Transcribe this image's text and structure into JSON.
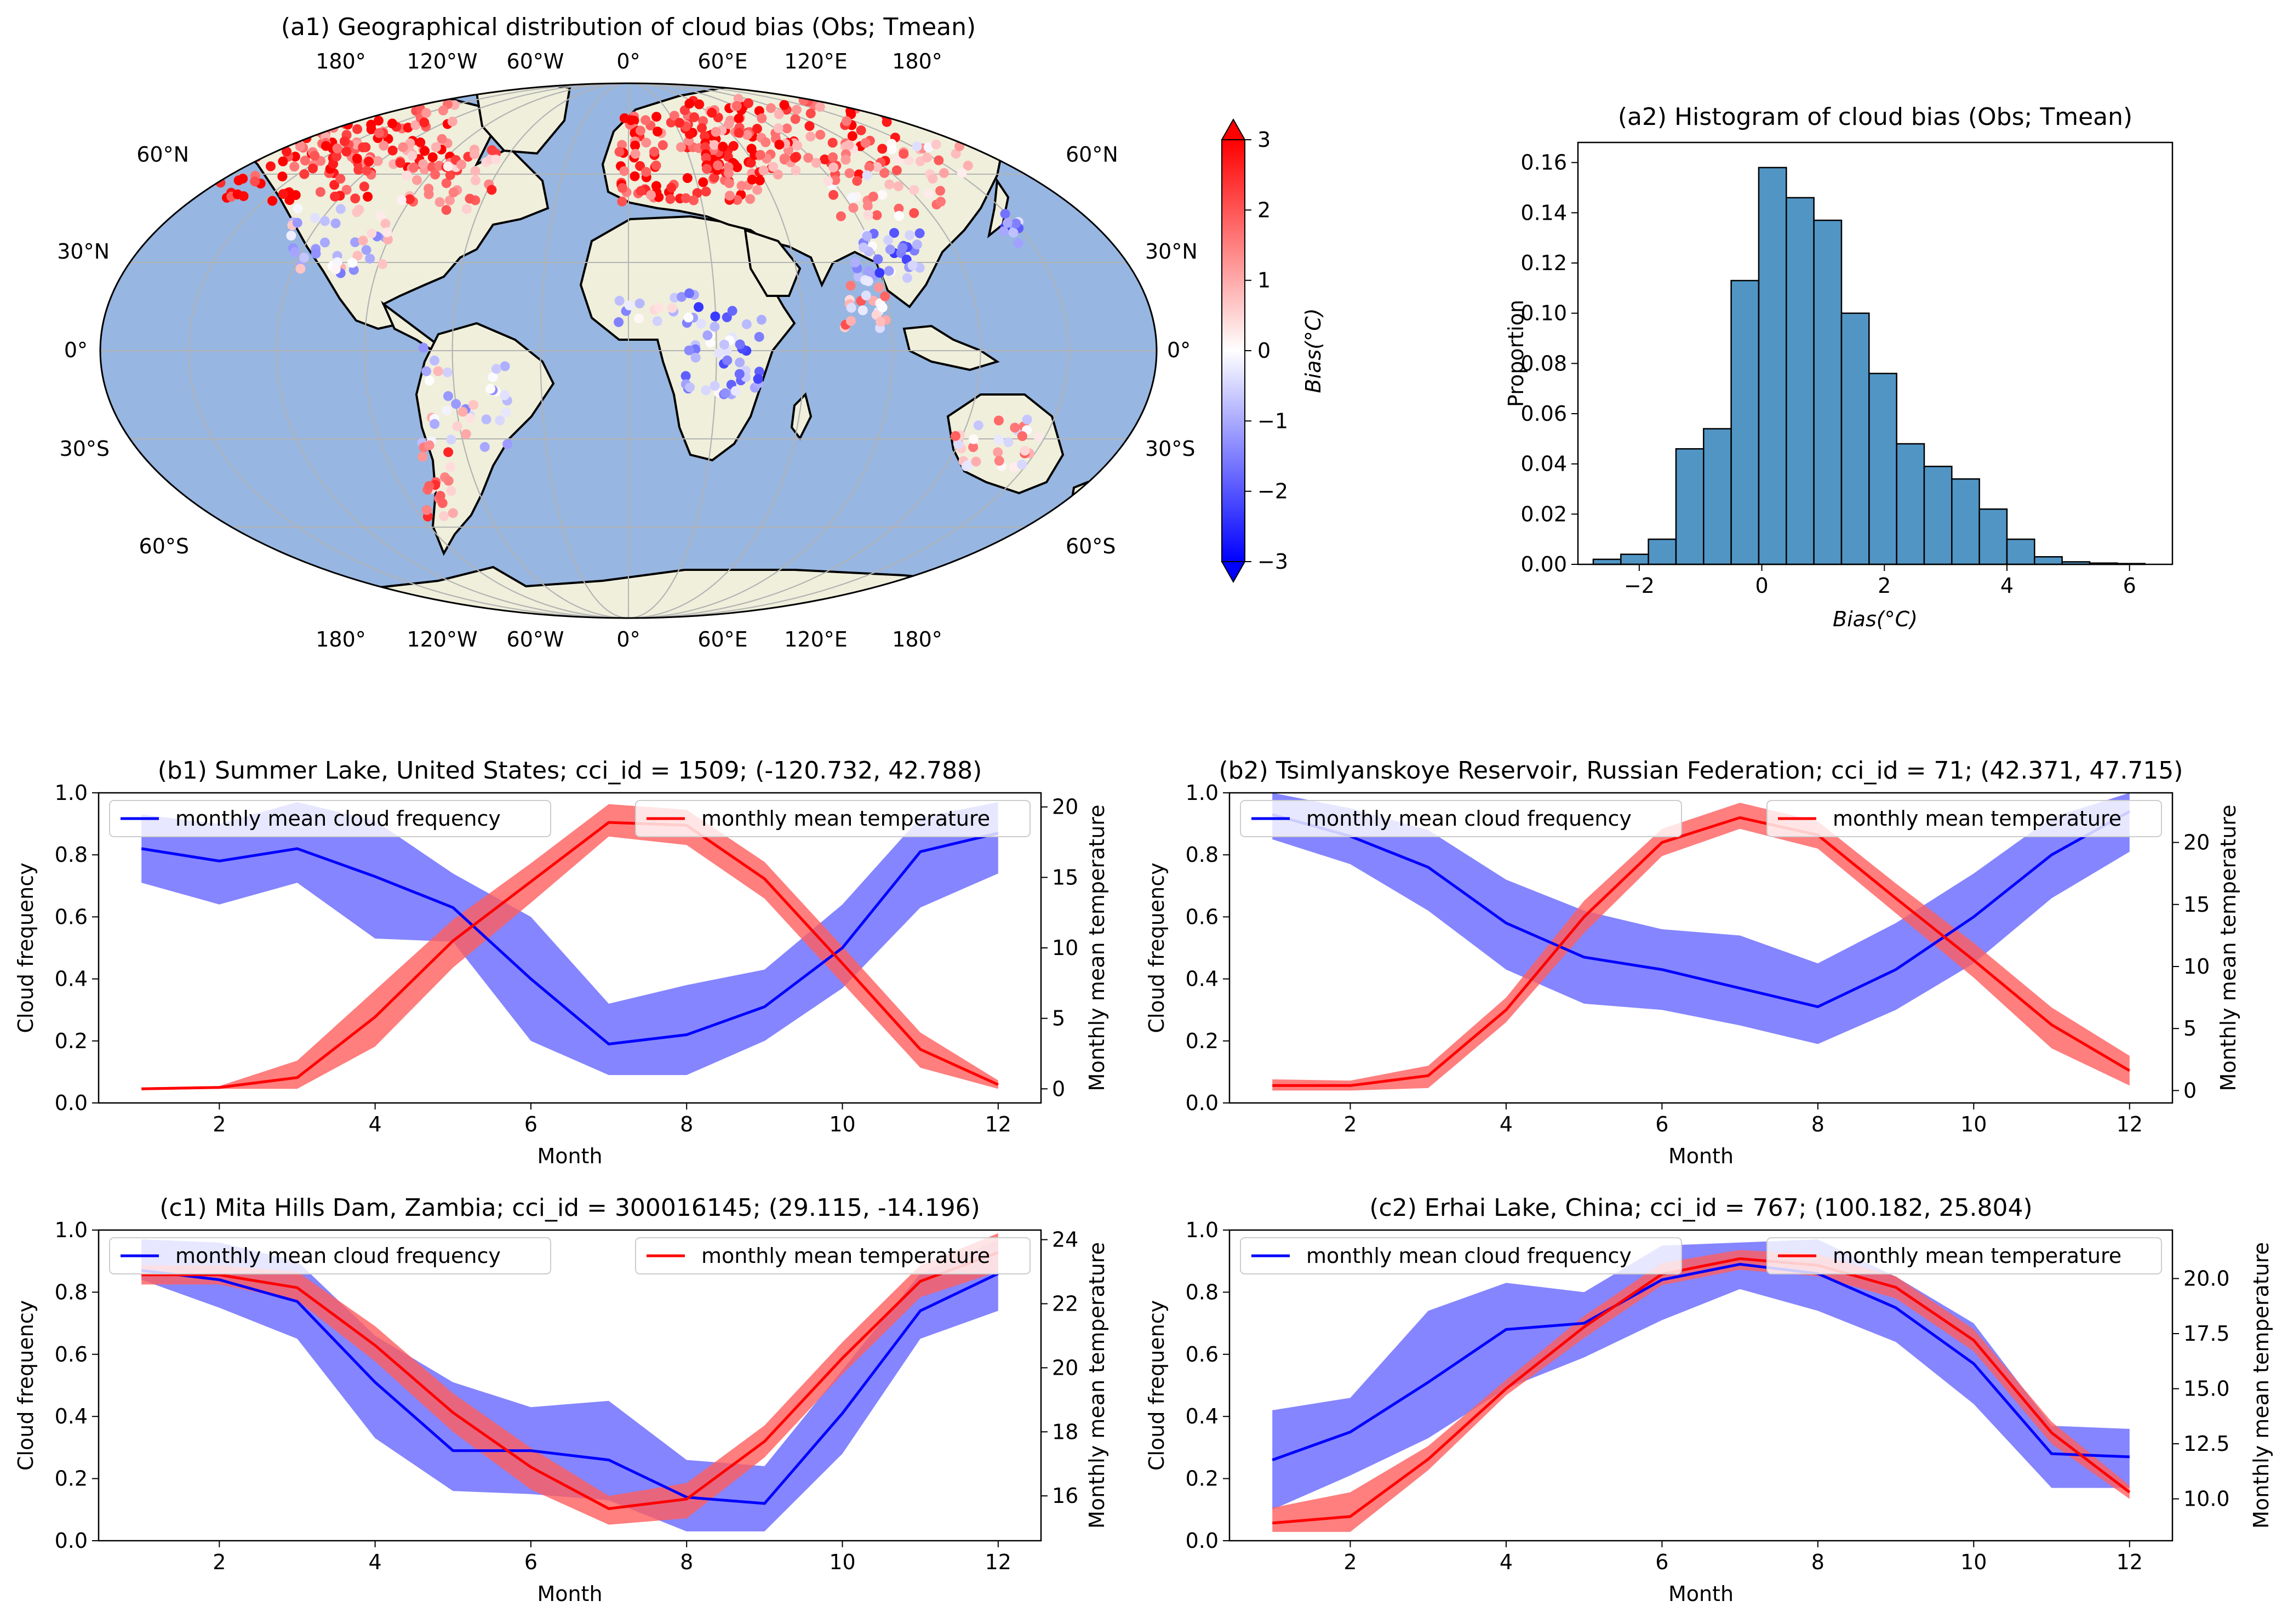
{
  "colors": {
    "ocean": "#97b6e1",
    "land": "#efefdc",
    "coast": "#000000",
    "grid": "#b3b3b3",
    "hist_bar": "#5195c4",
    "cloud_line": "#0000ff",
    "cloud_band": "#6666ff",
    "temp_line": "#ff0000",
    "temp_band": "#ff5e5e"
  },
  "map": {
    "title": "(a1) Geographical distribution of cloud bias (Obs; Tmean)",
    "lon_labels": [
      "180°",
      "120°W",
      "60°W",
      "0°",
      "60°E",
      "120°E",
      "180°"
    ],
    "lat_labels": [
      "60°N",
      "30°N",
      "0°",
      "30°S",
      "60°S"
    ],
    "colorbar": {
      "label": "Bias(°C)",
      "ticks": [
        "3",
        "2",
        "1",
        "0",
        "−1",
        "−2",
        "−3"
      ],
      "range": [
        -3,
        3
      ],
      "colormap": "bwr"
    }
  },
  "chart_data": [
    {
      "id": "a2",
      "type": "bar",
      "title": "(a2) Histogram of cloud bias (Obs; Tmean)",
      "xlabel": "Bias(°C)",
      "ylabel": "Proportion",
      "xlim": [
        -3.0,
        6.7
      ],
      "ylim": [
        0,
        0.168
      ],
      "xticks": [
        "−2",
        "0",
        "2",
        "4",
        "6"
      ],
      "yticks": [
        "0.00",
        "0.02",
        "0.04",
        "0.06",
        "0.08",
        "0.10",
        "0.12",
        "0.14",
        "0.16"
      ],
      "bin_edges": [
        -2.75,
        -2.3,
        -1.85,
        -1.4,
        -0.95,
        -0.5,
        -0.05,
        0.4,
        0.85,
        1.3,
        1.75,
        2.2,
        2.65,
        3.1,
        3.55,
        4.0,
        4.45,
        4.9,
        5.35,
        5.8,
        6.25
      ],
      "values": [
        0.002,
        0.004,
        0.01,
        0.046,
        0.054,
        0.113,
        0.158,
        0.146,
        0.137,
        0.1,
        0.076,
        0.048,
        0.039,
        0.034,
        0.022,
        0.01,
        0.003,
        0.001,
        0.0005,
        0.0003
      ]
    },
    {
      "id": "b1",
      "type": "line",
      "title": "(b1)  Summer Lake, United States; cci_id = 1509; (-120.732, 42.788)",
      "xlabel": "Month",
      "ylabel": "Cloud frequency",
      "ylabel_right": "Monthly mean temperature",
      "xlim": [
        0.45,
        12.55
      ],
      "ylim": [
        0,
        1
      ],
      "ylim_right": [
        -1,
        21
      ],
      "xticks": [
        "2",
        "4",
        "6",
        "8",
        "10",
        "12"
      ],
      "yticks": [
        "0.0",
        "0.2",
        "0.4",
        "0.6",
        "0.8",
        "1.0"
      ],
      "yticks_right": [
        "0",
        "5",
        "10",
        "15",
        "20"
      ],
      "legend_left": "monthly mean cloud frequency",
      "legend_right": "monthly mean temperature",
      "x": [
        1,
        2,
        3,
        4,
        5,
        6,
        7,
        8,
        9,
        10,
        11,
        12
      ],
      "cloud": {
        "mean": [
          0.82,
          0.78,
          0.82,
          0.73,
          0.63,
          0.4,
          0.19,
          0.22,
          0.31,
          0.5,
          0.81,
          0.87
        ],
        "lower": [
          0.71,
          0.64,
          0.71,
          0.53,
          0.52,
          0.2,
          0.09,
          0.09,
          0.2,
          0.37,
          0.63,
          0.74
        ],
        "upper": [
          0.93,
          0.9,
          0.97,
          0.91,
          0.74,
          0.6,
          0.32,
          0.38,
          0.43,
          0.64,
          0.92,
          0.97
        ]
      },
      "temperature": {
        "mean": [
          0.0,
          0.1,
          0.8,
          5.1,
          10.5,
          14.7,
          18.9,
          18.7,
          14.9,
          8.9,
          2.8,
          0.3
        ],
        "lower": [
          -0.1,
          0.0,
          0.0,
          3.0,
          8.6,
          13.2,
          17.9,
          17.3,
          13.5,
          7.5,
          1.5,
          0.0
        ],
        "upper": [
          0.1,
          0.2,
          2.0,
          7.0,
          12.0,
          16.0,
          20.2,
          19.8,
          16.1,
          10.1,
          4.0,
          0.6
        ]
      }
    },
    {
      "id": "b2",
      "type": "line",
      "title": "(b2)  Tsimlyanskoye Reservoir, Russian Federation; cci_id = 71; (42.371, 47.715)",
      "xlabel": "Month",
      "ylabel": "Cloud frequency",
      "ylabel_right": "Monthly mean temperature",
      "xlim": [
        0.45,
        12.55
      ],
      "ylim": [
        0,
        1
      ],
      "ylim_right": [
        -1,
        24
      ],
      "xticks": [
        "2",
        "4",
        "6",
        "8",
        "10",
        "12"
      ],
      "yticks": [
        "0.0",
        "0.2",
        "0.4",
        "0.6",
        "0.8",
        "1.0"
      ],
      "yticks_right": [
        "0",
        "5",
        "10",
        "15",
        "20"
      ],
      "legend_left": "monthly mean cloud frequency",
      "legend_right": "monthly mean temperature",
      "x": [
        1,
        2,
        3,
        4,
        5,
        6,
        7,
        8,
        9,
        10,
        11,
        12
      ],
      "cloud": {
        "mean": [
          0.93,
          0.86,
          0.76,
          0.58,
          0.47,
          0.43,
          0.37,
          0.31,
          0.43,
          0.6,
          0.8,
          0.94
        ],
        "lower": [
          0.85,
          0.77,
          0.62,
          0.43,
          0.32,
          0.3,
          0.25,
          0.19,
          0.3,
          0.45,
          0.66,
          0.81
        ],
        "upper": [
          1.0,
          0.95,
          0.88,
          0.72,
          0.62,
          0.56,
          0.54,
          0.45,
          0.58,
          0.74,
          0.92,
          1.0
        ]
      },
      "temperature": {
        "mean": [
          0.4,
          0.4,
          1.2,
          6.5,
          14.0,
          20.0,
          22.0,
          20.6,
          15.5,
          10.5,
          5.3,
          1.6
        ],
        "lower": [
          0.0,
          0.0,
          0.2,
          5.5,
          12.7,
          18.9,
          21.1,
          19.5,
          14.3,
          9.1,
          3.4,
          0.4
        ],
        "upper": [
          0.9,
          0.8,
          2.0,
          7.5,
          15.3,
          21.1,
          23.2,
          21.7,
          16.7,
          11.9,
          6.7,
          2.8
        ]
      }
    },
    {
      "id": "c1",
      "type": "line",
      "title": "(c1)  Mita Hills Dam, Zambia; cci_id = 300016145; (29.115, -14.196)",
      "xlabel": "Month",
      "ylabel": "Cloud frequency",
      "ylabel_right": "Monthly mean temperature",
      "xlim": [
        0.45,
        12.55
      ],
      "ylim": [
        0,
        1
      ],
      "ylim_right": [
        14.6,
        24.3
      ],
      "xticks": [
        "2",
        "4",
        "6",
        "8",
        "10",
        "12"
      ],
      "yticks": [
        "0.0",
        "0.2",
        "0.4",
        "0.6",
        "0.8",
        "1.0"
      ],
      "yticks_right": [
        "16",
        "18",
        "20",
        "22",
        "24"
      ],
      "legend_left": "monthly mean cloud frequency",
      "legend_right": "monthly mean temperature",
      "x": [
        1,
        2,
        3,
        4,
        5,
        6,
        7,
        8,
        9,
        10,
        11,
        12
      ],
      "cloud": {
        "mean": [
          0.87,
          0.84,
          0.77,
          0.51,
          0.29,
          0.29,
          0.26,
          0.14,
          0.12,
          0.41,
          0.74,
          0.86
        ],
        "lower": [
          0.84,
          0.75,
          0.65,
          0.33,
          0.16,
          0.15,
          0.13,
          0.03,
          0.03,
          0.28,
          0.65,
          0.74
        ],
        "upper": [
          0.97,
          0.96,
          0.9,
          0.66,
          0.51,
          0.43,
          0.45,
          0.26,
          0.24,
          0.55,
          0.86,
          0.97
        ]
      },
      "temperature": {
        "mean": [
          22.9,
          22.9,
          22.5,
          20.7,
          18.6,
          16.9,
          15.6,
          15.9,
          17.7,
          20.3,
          22.7,
          23.6
        ],
        "lower": [
          22.6,
          22.6,
          22.1,
          20.2,
          18.0,
          16.2,
          15.1,
          15.3,
          17.2,
          19.8,
          22.2,
          23.0
        ],
        "upper": [
          23.2,
          23.2,
          23.0,
          21.3,
          19.2,
          17.5,
          16.0,
          16.4,
          18.2,
          20.8,
          23.2,
          24.2
        ]
      }
    },
    {
      "id": "c2",
      "type": "line",
      "title": "(c2)  Erhai Lake, China; cci_id = 767; (100.182, 25.804)",
      "xlabel": "Month",
      "ylabel": "Cloud frequency",
      "ylabel_right": "Monthly mean temperature",
      "xlim": [
        0.45,
        12.55
      ],
      "ylim": [
        0,
        1
      ],
      "ylim_right": [
        8.1,
        22.2
      ],
      "xticks": [
        "2",
        "4",
        "6",
        "8",
        "10",
        "12"
      ],
      "yticks": [
        "0.0",
        "0.2",
        "0.4",
        "0.6",
        "0.8",
        "1.0"
      ],
      "yticks_right": [
        "10.0",
        "12.5",
        "15.0",
        "17.5",
        "20.0"
      ],
      "legend_left": "monthly mean cloud frequency",
      "legend_right": "monthly mean temperature",
      "x": [
        1,
        2,
        3,
        4,
        5,
        6,
        7,
        8,
        9,
        10,
        11,
        12
      ],
      "cloud": {
        "mean": [
          0.26,
          0.35,
          0.51,
          0.68,
          0.7,
          0.84,
          0.89,
          0.86,
          0.75,
          0.57,
          0.28,
          0.27
        ],
        "lower": [
          0.1,
          0.21,
          0.33,
          0.49,
          0.59,
          0.71,
          0.81,
          0.74,
          0.64,
          0.44,
          0.17,
          0.17
        ],
        "upper": [
          0.42,
          0.46,
          0.74,
          0.83,
          0.8,
          0.95,
          0.96,
          0.97,
          0.85,
          0.7,
          0.37,
          0.36
        ]
      },
      "temperature": {
        "mean": [
          8.9,
          9.2,
          11.8,
          15.0,
          17.8,
          20.2,
          20.9,
          20.6,
          19.6,
          17.2,
          13.0,
          10.3
        ],
        "lower": [
          8.5,
          8.5,
          11.3,
          14.7,
          17.3,
          19.7,
          20.4,
          20.1,
          19.1,
          16.7,
          12.5,
          10.0
        ],
        "upper": [
          9.6,
          10.3,
          12.4,
          15.4,
          18.3,
          20.7,
          21.3,
          21.1,
          20.1,
          17.7,
          13.5,
          10.6
        ]
      }
    }
  ]
}
